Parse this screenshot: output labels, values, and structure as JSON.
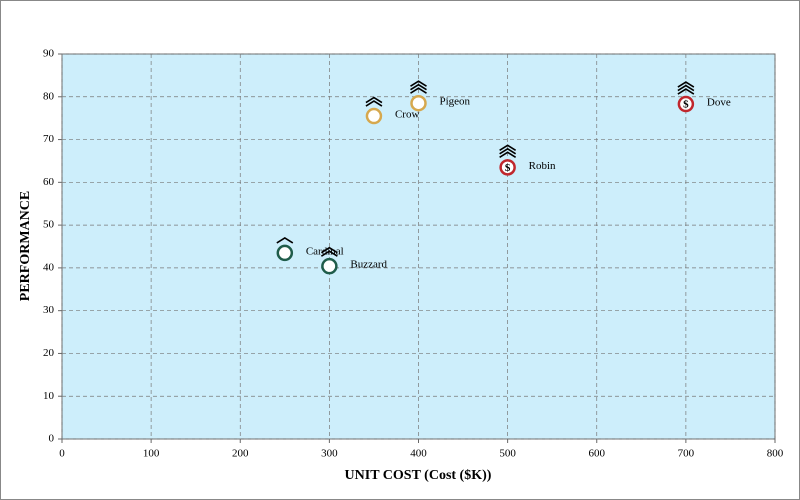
{
  "chart_data": {
    "type": "scatter",
    "xlabel": "UNIT COST (Cost ($K))",
    "ylabel": "PERFORMANCE",
    "xlim": [
      0,
      800
    ],
    "xticks": [
      0,
      100,
      200,
      300,
      400,
      500,
      600,
      700,
      800
    ],
    "ylim": [
      0,
      90
    ],
    "yticks": [
      0,
      10,
      20,
      30,
      40,
      50,
      60,
      70,
      80,
      90
    ],
    "grid": true,
    "labels": [
      "Crow",
      "Pigeon",
      "Robin",
      "Dove",
      "Cardinal",
      "Buzzard"
    ],
    "x": [
      350,
      400,
      500,
      700,
      250,
      300
    ],
    "values": [
      75.5,
      78.5,
      63.5,
      78.3,
      43.5,
      40.4
    ],
    "colors": [
      "#d6a84e",
      "#d6a84e",
      "#c0272d",
      "#c0272d",
      "#1f5c4a",
      "#1f5c4a"
    ],
    "symbols": [
      null,
      null,
      "$",
      "$",
      null,
      null
    ],
    "chevrons": [
      2,
      3,
      3,
      3,
      1,
      2
    ]
  }
}
